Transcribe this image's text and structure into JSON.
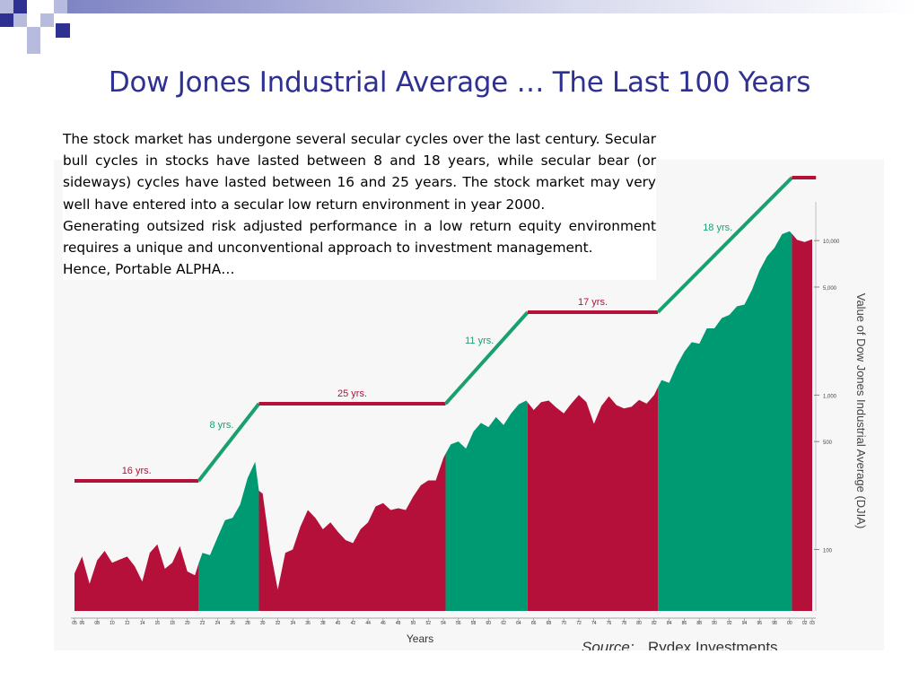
{
  "title": "Dow Jones Industrial Average … The Last 100 Years",
  "paragraphs": [
    "The stock market has undergone several secular cycles over the last century. Secular bull cycles in stocks have lasted between 8 and 18 years, while secular bear (or sideways) cycles have lasted between 16 and 25 years. The stock market may very well have entered into a secular low return environment in year 2000.",
    "Generating outsized risk adjusted performance in a low return equity environment requires a unique and unconventional approach to investment management.",
    "Hence, Portable ALPHA…"
  ],
  "colors": {
    "title": "#2e3192",
    "bear": "#b5103a",
    "bull": "#009a72",
    "cycle_line_bear": "#b5103a",
    "cycle_line_bull": "#1aa06d",
    "deco_dark": "#2e3192",
    "deco_light": "#b7bbde"
  },
  "chart_data": {
    "type": "area",
    "xlabel": "Years",
    "ylabel": "Value of Dow Jones Industrial Average (DJIA)",
    "source_label": "Source:",
    "source_name": "Rydex Investments",
    "y_scale": "log",
    "ylim": [
      40,
      16000
    ],
    "y_ticks": [
      {
        "value": 100,
        "label": "100"
      },
      {
        "value": 500,
        "label": "500"
      },
      {
        "value": 1000,
        "label": "1,000"
      },
      {
        "value": 5000,
        "label": "5,000"
      },
      {
        "value": 10000,
        "label": "10,000"
      }
    ],
    "xlim": [
      1905,
      2003
    ],
    "x_ticks": [
      "05",
      "06",
      "08",
      "10",
      "12",
      "14",
      "16",
      "18",
      "20",
      "22",
      "24",
      "26",
      "28",
      "30",
      "32",
      "34",
      "36",
      "38",
      "40",
      "42",
      "44",
      "46",
      "48",
      "50",
      "52",
      "54",
      "56",
      "58",
      "60",
      "62",
      "64",
      "66",
      "68",
      "70",
      "72",
      "74",
      "76",
      "78",
      "80",
      "82",
      "84",
      "86",
      "88",
      "90",
      "92",
      "94",
      "96",
      "98",
      "00",
      "02",
      "03"
    ],
    "x_tick_years": [
      1905,
      1906,
      1908,
      1910,
      1912,
      1914,
      1916,
      1918,
      1920,
      1922,
      1924,
      1926,
      1928,
      1930,
      1932,
      1934,
      1936,
      1938,
      1940,
      1942,
      1944,
      1946,
      1948,
      1950,
      1952,
      1954,
      1956,
      1958,
      1960,
      1962,
      1964,
      1966,
      1968,
      1970,
      1972,
      1974,
      1976,
      1978,
      1980,
      1982,
      1984,
      1986,
      1988,
      1990,
      1992,
      1994,
      1996,
      1998,
      2000,
      2002,
      2003
    ],
    "series": [
      {
        "x": [
          1905,
          1906,
          1907,
          1908,
          1909,
          1910,
          1911,
          1912,
          1913,
          1914,
          1915,
          1916,
          1917,
          1918,
          1919,
          1920,
          1921,
          1922,
          1923,
          1924,
          1925,
          1926,
          1927,
          1928,
          1929,
          1929.5,
          1930,
          1931,
          1932,
          1933,
          1934,
          1935,
          1936,
          1937,
          1938,
          1939,
          1940,
          1941,
          1942,
          1943,
          1944,
          1945,
          1946,
          1947,
          1948,
          1949,
          1950,
          1951,
          1952,
          1953,
          1954,
          1955,
          1956,
          1957,
          1958,
          1959,
          1960,
          1961,
          1962,
          1963,
          1964,
          1965,
          1966,
          1967,
          1968,
          1969,
          1970,
          1971,
          1972,
          1973,
          1974,
          1975,
          1976,
          1977,
          1978,
          1979,
          1980,
          1981,
          1982,
          1983,
          1984,
          1985,
          1986,
          1987,
          1988,
          1989,
          1990,
          1991,
          1992,
          1993,
          1994,
          1995,
          1996,
          1997,
          1998,
          1999,
          2000,
          2001,
          2002,
          2003
        ],
        "y": [
          70,
          90,
          60,
          85,
          98,
          82,
          86,
          90,
          78,
          62,
          95,
          108,
          75,
          82,
          105,
          72,
          68,
          95,
          92,
          120,
          155,
          160,
          195,
          290,
          370,
          240,
          230,
          100,
          55,
          95,
          100,
          140,
          180,
          160,
          135,
          150,
          130,
          115,
          110,
          135,
          150,
          190,
          200,
          180,
          185,
          180,
          220,
          260,
          280,
          280,
          390,
          480,
          500,
          450,
          580,
          660,
          620,
          720,
          640,
          760,
          870,
          920,
          800,
          900,
          920,
          830,
          760,
          880,
          1000,
          900,
          650,
          850,
          980,
          860,
          820,
          840,
          930,
          880,
          1000,
          1250,
          1200,
          1550,
          1900,
          2200,
          2150,
          2700,
          2700,
          3150,
          3300,
          3750,
          3850,
          4800,
          6400,
          7900,
          9000,
          11000,
          11500,
          10100,
          9800,
          10200
        ]
      }
    ],
    "phases": [
      {
        "start": 1905,
        "end": 1921.5,
        "kind": "bear"
      },
      {
        "start": 1921.5,
        "end": 1929.5,
        "kind": "bull"
      },
      {
        "start": 1929.5,
        "end": 1954.3,
        "kind": "bear"
      },
      {
        "start": 1954.3,
        "end": 1965.2,
        "kind": "bull"
      },
      {
        "start": 1965.2,
        "end": 1982.5,
        "kind": "bear"
      },
      {
        "start": 1982.5,
        "end": 2000.3,
        "kind": "bull"
      },
      {
        "start": 2000.3,
        "end": 2003,
        "kind": "bear"
      }
    ],
    "cycles": [
      {
        "label": "16 yrs.",
        "kind": "bear",
        "start": 1905,
        "end": 1921.5
      },
      {
        "label": "8 yrs.",
        "kind": "bull",
        "start": 1921.5,
        "end": 1929.5
      },
      {
        "label": "25 yrs.",
        "kind": "bear",
        "start": 1929.5,
        "end": 1954.3
      },
      {
        "label": "11 yrs.",
        "kind": "bull",
        "start": 1954.3,
        "end": 1965.2
      },
      {
        "label": "17 yrs.",
        "kind": "bear",
        "start": 1965.2,
        "end": 1982.5
      },
      {
        "label": "18 yrs.",
        "kind": "bull",
        "start": 1982.5,
        "end": 2000.3
      },
      {
        "label": "",
        "kind": "bear",
        "start": 2000.3,
        "end": 2003.5
      }
    ]
  }
}
